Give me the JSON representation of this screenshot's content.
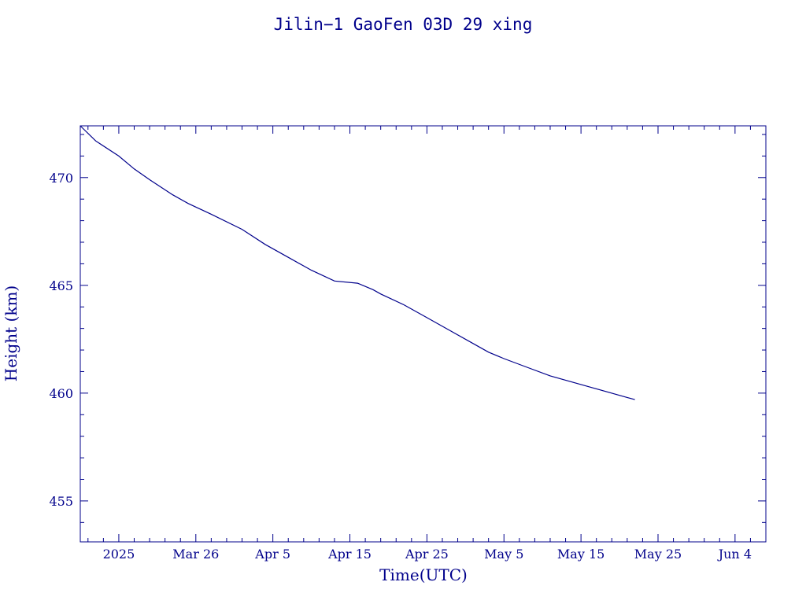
{
  "chart_data": {
    "type": "line",
    "title": "Jilin−1 GaoFen 03D 29 xing",
    "xlabel": "Time(UTC)",
    "ylabel": "Height (km)",
    "x_tick_labels": [
      {
        "date": "2025-03-16",
        "label": "2025"
      },
      {
        "date": "2025-03-26",
        "label": "Mar 26"
      },
      {
        "date": "2025-04-05",
        "label": "Apr  5"
      },
      {
        "date": "2025-04-15",
        "label": "Apr 15"
      },
      {
        "date": "2025-04-25",
        "label": "Apr 25"
      },
      {
        "date": "2025-05-05",
        "label": "May  5"
      },
      {
        "date": "2025-05-15",
        "label": "May 15"
      },
      {
        "date": "2025-05-25",
        "label": "May 25"
      },
      {
        "date": "2025-06-04",
        "label": "Jun  4"
      }
    ],
    "xlim": [
      "2025-03-11",
      "2025-06-08"
    ],
    "ylim": [
      453.1,
      472.4
    ],
    "y_ticks": [
      455,
      460,
      465,
      470
    ],
    "color": "#00008b",
    "grid": false,
    "series": [
      {
        "x": [
          "2025-03-11",
          "2025-03-13",
          "2025-03-16",
          "2025-03-18",
          "2025-03-20",
          "2025-03-23",
          "2025-03-25",
          "2025-03-28",
          "2025-04-01",
          "2025-04-04",
          "2025-04-07",
          "2025-04-10",
          "2025-04-13",
          "2025-04-16",
          "2025-04-18",
          "2025-04-19",
          "2025-04-22",
          "2025-04-25",
          "2025-04-28",
          "2025-05-01",
          "2025-05-03",
          "2025-05-05",
          "2025-05-08",
          "2025-05-11",
          "2025-05-14",
          "2025-05-17",
          "2025-05-19",
          "2025-05-21",
          "2025-05-22"
        ],
        "y": [
          472.4,
          471.7,
          471.0,
          470.4,
          469.9,
          469.2,
          468.8,
          468.3,
          467.6,
          466.9,
          466.3,
          465.7,
          465.2,
          465.1,
          464.8,
          464.6,
          464.1,
          463.5,
          462.9,
          462.3,
          461.9,
          461.6,
          461.2,
          460.8,
          460.5,
          460.2,
          460.0,
          459.8,
          459.7
        ]
      }
    ]
  }
}
